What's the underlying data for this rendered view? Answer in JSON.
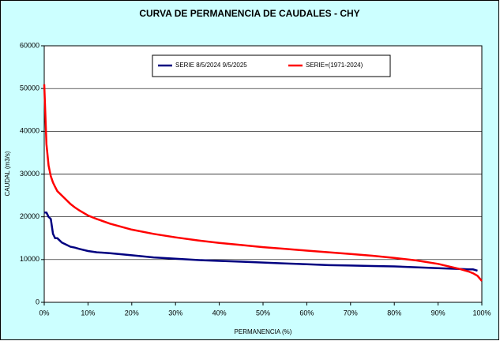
{
  "chart_data": {
    "type": "line",
    "title": "CURVA DE PERMANENCIA DE CAUDALES - CHY",
    "x_label": "PERMANENCIA (%)",
    "y_label": "CAUDAL (m3/s)",
    "x": [
      0,
      0.5,
      1,
      1.5,
      2,
      2.5,
      3,
      4,
      5,
      6,
      7,
      8,
      10,
      12,
      15,
      20,
      25,
      30,
      35,
      40,
      45,
      50,
      55,
      60,
      65,
      70,
      75,
      80,
      85,
      90,
      95,
      97,
      98,
      99,
      100
    ],
    "series": [
      {
        "name": "SERIE 8/5/2024 9/5/2025",
        "color": "#000080",
        "values": [
          21000,
          21000,
          20000,
          19500,
          16000,
          15000,
          15000,
          14000,
          13500,
          13000,
          12800,
          12500,
          12000,
          11700,
          11500,
          11000,
          10500,
          10200,
          9900,
          9700,
          9500,
          9300,
          9100,
          8900,
          8700,
          8600,
          8500,
          8400,
          8200,
          8000,
          7800,
          7700,
          7700,
          7400,
          null
        ]
      },
      {
        "name": "SERIE=(1971-2024)",
        "color": "#ff0000",
        "values": [
          51000,
          37000,
          32000,
          29500,
          28000,
          27000,
          26000,
          25000,
          24000,
          23000,
          22200,
          21500,
          20300,
          19500,
          18400,
          17000,
          16000,
          15200,
          14500,
          13900,
          13400,
          12900,
          12500,
          12100,
          11700,
          11300,
          10900,
          10400,
          9800,
          9000,
          7800,
          7200,
          6800,
          6200,
          5000
        ]
      }
    ],
    "xlim": [
      0,
      100
    ],
    "xticks": [
      {
        "value": 0,
        "label": "0%"
      },
      {
        "value": 10,
        "label": "10%"
      },
      {
        "value": 20,
        "label": "20%"
      },
      {
        "value": 30,
        "label": "30%"
      },
      {
        "value": 40,
        "label": "40%"
      },
      {
        "value": 50,
        "label": "50%"
      },
      {
        "value": 60,
        "label": "60%"
      },
      {
        "value": 70,
        "label": "70%"
      },
      {
        "value": 80,
        "label": "80%"
      },
      {
        "value": 90,
        "label": "90%"
      },
      {
        "value": 100,
        "label": "100%"
      }
    ],
    "ylim": [
      0,
      60000
    ],
    "yticks": [
      0,
      10000,
      20000,
      30000,
      40000,
      50000,
      60000
    ],
    "grid": true
  }
}
